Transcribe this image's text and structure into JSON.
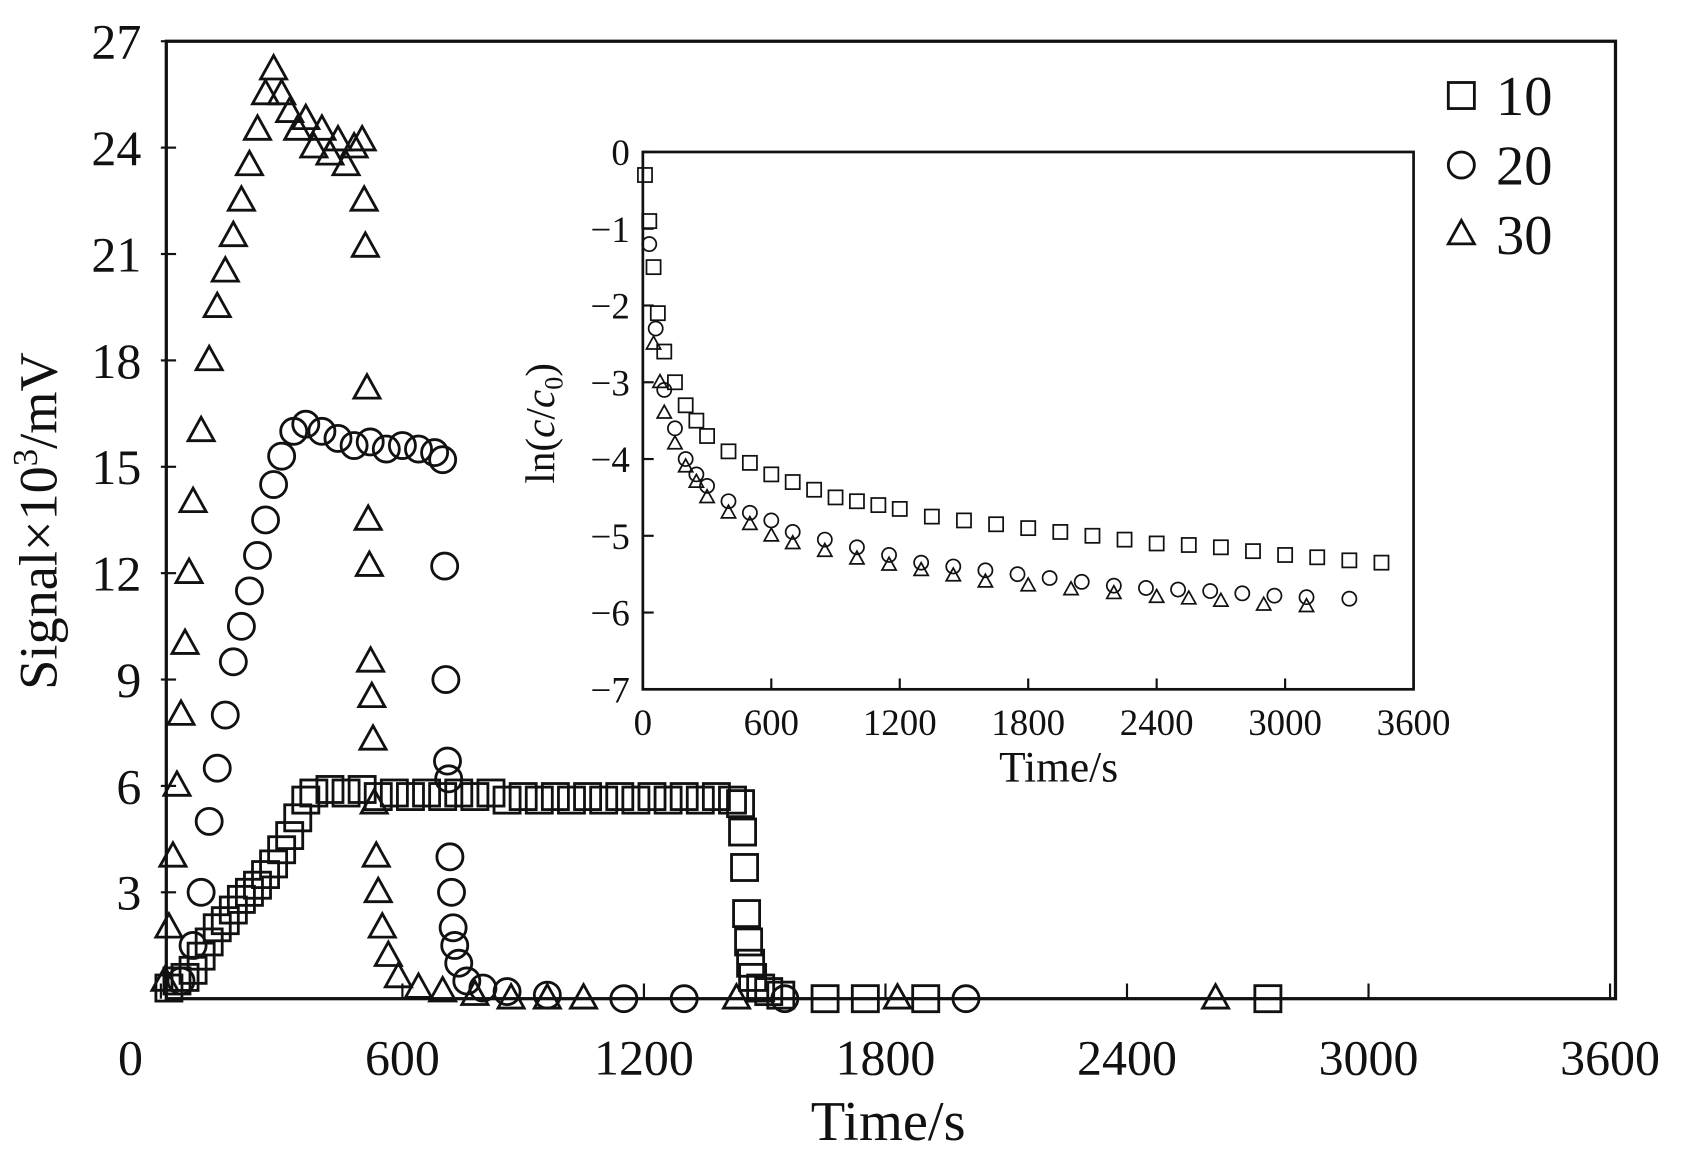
{
  "chart_data": [
    {
      "type": "scatter",
      "xlabel": "Time/s",
      "ylabel": "Signal×10³/mV",
      "xlim": [
        0,
        3600
      ],
      "ylim": [
        0,
        27
      ],
      "xticks": [
        "0",
        "600",
        "1200",
        "1800",
        "2400",
        "3000",
        "3600"
      ],
      "yticks": [
        "3",
        "6",
        "9",
        "12",
        "15",
        "18",
        "21",
        "24",
        "27"
      ],
      "grid": false,
      "legend_position": "top-right",
      "series": [
        {
          "name": "10",
          "marker": "square",
          "points": [
            [
              20,
              0.3
            ],
            [
              40,
              0.5
            ],
            [
              60,
              0.6
            ],
            [
              80,
              0.8
            ],
            [
              100,
              1.2
            ],
            [
              120,
              1.6
            ],
            [
              140,
              2
            ],
            [
              160,
              2.2
            ],
            [
              180,
              2.5
            ],
            [
              200,
              2.8
            ],
            [
              220,
              3
            ],
            [
              240,
              3.2
            ],
            [
              260,
              3.5
            ],
            [
              280,
              3.8
            ],
            [
              300,
              4.2
            ],
            [
              320,
              4.6
            ],
            [
              340,
              5.1
            ],
            [
              360,
              5.6
            ],
            [
              380,
              5.8
            ],
            [
              420,
              5.9
            ],
            [
              460,
              5.8
            ],
            [
              500,
              5.9
            ],
            [
              540,
              5.7
            ],
            [
              580,
              5.8
            ],
            [
              620,
              5.7
            ],
            [
              660,
              5.8
            ],
            [
              700,
              5.7
            ],
            [
              740,
              5.8
            ],
            [
              780,
              5.7
            ],
            [
              820,
              5.8
            ],
            [
              860,
              5.6
            ],
            [
              900,
              5.7
            ],
            [
              940,
              5.6
            ],
            [
              980,
              5.7
            ],
            [
              1020,
              5.6
            ],
            [
              1060,
              5.7
            ],
            [
              1100,
              5.6
            ],
            [
              1140,
              5.7
            ],
            [
              1180,
              5.6
            ],
            [
              1220,
              5.7
            ],
            [
              1260,
              5.6
            ],
            [
              1300,
              5.7
            ],
            [
              1340,
              5.6
            ],
            [
              1380,
              5.7
            ],
            [
              1420,
              5.6
            ],
            [
              1440,
              5.5
            ],
            [
              1445,
              4.7
            ],
            [
              1450,
              3.7
            ],
            [
              1455,
              2.4
            ],
            [
              1460,
              1.6
            ],
            [
              1465,
              1
            ],
            [
              1470,
              0.6
            ],
            [
              1490,
              0.3
            ],
            [
              1510,
              0.2
            ],
            [
              1540,
              0.1
            ],
            [
              1650,
              0
            ],
            [
              1750,
              0
            ],
            [
              1900,
              0
            ],
            [
              2750,
              0
            ]
          ]
        },
        {
          "name": "20",
          "marker": "circle",
          "points": [
            [
              50,
              0.5
            ],
            [
              80,
              1.5
            ],
            [
              100,
              3
            ],
            [
              120,
              5
            ],
            [
              140,
              6.5
            ],
            [
              160,
              8
            ],
            [
              180,
              9.5
            ],
            [
              200,
              10.5
            ],
            [
              220,
              11.5
            ],
            [
              240,
              12.5
            ],
            [
              260,
              13.5
            ],
            [
              280,
              14.5
            ],
            [
              300,
              15.3
            ],
            [
              330,
              16
            ],
            [
              360,
              16.2
            ],
            [
              400,
              16
            ],
            [
              440,
              15.8
            ],
            [
              480,
              15.6
            ],
            [
              520,
              15.7
            ],
            [
              560,
              15.5
            ],
            [
              600,
              15.6
            ],
            [
              640,
              15.5
            ],
            [
              680,
              15.4
            ],
            [
              700,
              15.2
            ],
            [
              705,
              12.2
            ],
            [
              708,
              9
            ],
            [
              712,
              6.7
            ],
            [
              715,
              6.2
            ],
            [
              718,
              4
            ],
            [
              722,
              3
            ],
            [
              726,
              2
            ],
            [
              730,
              1.5
            ],
            [
              740,
              1
            ],
            [
              760,
              0.5
            ],
            [
              800,
              0.3
            ],
            [
              860,
              0.2
            ],
            [
              960,
              0.1
            ],
            [
              1150,
              0
            ],
            [
              1300,
              0
            ],
            [
              1550,
              0
            ],
            [
              2000,
              0
            ]
          ]
        },
        {
          "name": "30",
          "marker": "triangle",
          "points": [
            [
              10,
              0.5
            ],
            [
              20,
              2
            ],
            [
              30,
              4
            ],
            [
              40,
              6
            ],
            [
              50,
              8
            ],
            [
              60,
              10
            ],
            [
              70,
              12
            ],
            [
              80,
              14
            ],
            [
              100,
              16
            ],
            [
              120,
              18
            ],
            [
              140,
              19.5
            ],
            [
              160,
              20.5
            ],
            [
              180,
              21.5
            ],
            [
              200,
              22.5
            ],
            [
              220,
              23.5
            ],
            [
              240,
              24.5
            ],
            [
              260,
              25.5
            ],
            [
              280,
              26.2
            ],
            [
              300,
              25.5
            ],
            [
              320,
              25
            ],
            [
              340,
              24.5
            ],
            [
              360,
              24.8
            ],
            [
              380,
              24
            ],
            [
              400,
              24.5
            ],
            [
              420,
              23.8
            ],
            [
              440,
              24.2
            ],
            [
              460,
              23.5
            ],
            [
              480,
              24
            ],
            [
              500,
              24.2
            ],
            [
              505,
              22.5
            ],
            [
              508,
              21.2
            ],
            [
              512,
              17.2
            ],
            [
              515,
              13.5
            ],
            [
              518,
              12.2
            ],
            [
              521,
              9.5
            ],
            [
              524,
              8.5
            ],
            [
              527,
              7.3
            ],
            [
              530,
              5.5
            ],
            [
              535,
              4
            ],
            [
              540,
              3
            ],
            [
              550,
              2
            ],
            [
              565,
              1.2
            ],
            [
              590,
              0.6
            ],
            [
              640,
              0.3
            ],
            [
              700,
              0.2
            ],
            [
              780,
              0.1
            ],
            [
              870,
              0
            ],
            [
              960,
              0
            ],
            [
              1050,
              0
            ],
            [
              1430,
              0
            ],
            [
              1830,
              0
            ],
            [
              2620,
              0
            ]
          ]
        }
      ]
    },
    {
      "type": "scatter",
      "xlabel": "Time/s",
      "ylabel": "ln(c/c0)",
      "xlim": [
        0,
        3600
      ],
      "ylim": [
        -7,
        0
      ],
      "xticks": [
        "0",
        "600",
        "1200",
        "1800",
        "2400",
        "3000",
        "3600"
      ],
      "yticks": [
        "0",
        "−1",
        "−2",
        "−3",
        "−4",
        "−5",
        "−6",
        "−7"
      ],
      "grid": false,
      "series": [
        {
          "name": "10",
          "marker": "square",
          "points": [
            [
              10,
              -0.3
            ],
            [
              30,
              -0.9
            ],
            [
              50,
              -1.5
            ],
            [
              70,
              -2.1
            ],
            [
              100,
              -2.6
            ],
            [
              150,
              -3
            ],
            [
              200,
              -3.3
            ],
            [
              250,
              -3.5
            ],
            [
              300,
              -3.7
            ],
            [
              400,
              -3.9
            ],
            [
              500,
              -4.05
            ],
            [
              600,
              -4.2
            ],
            [
              700,
              -4.3
            ],
            [
              800,
              -4.4
            ],
            [
              900,
              -4.5
            ],
            [
              1000,
              -4.55
            ],
            [
              1100,
              -4.6
            ],
            [
              1200,
              -4.65
            ],
            [
              1350,
              -4.75
            ],
            [
              1500,
              -4.8
            ],
            [
              1650,
              -4.85
            ],
            [
              1800,
              -4.9
            ],
            [
              1950,
              -4.95
            ],
            [
              2100,
              -5
            ],
            [
              2250,
              -5.05
            ],
            [
              2400,
              -5.1
            ],
            [
              2550,
              -5.12
            ],
            [
              2700,
              -5.15
            ],
            [
              2850,
              -5.2
            ],
            [
              3000,
              -5.25
            ],
            [
              3150,
              -5.28
            ],
            [
              3300,
              -5.32
            ],
            [
              3450,
              -5.35
            ]
          ]
        },
        {
          "name": "20",
          "marker": "circle",
          "points": [
            [
              30,
              -1.2
            ],
            [
              60,
              -2.3
            ],
            [
              100,
              -3.1
            ],
            [
              150,
              -3.6
            ],
            [
              200,
              -4
            ],
            [
              250,
              -4.2
            ],
            [
              300,
              -4.35
            ],
            [
              400,
              -4.55
            ],
            [
              500,
              -4.7
            ],
            [
              600,
              -4.8
            ],
            [
              700,
              -4.95
            ],
            [
              850,
              -5.05
            ],
            [
              1000,
              -5.15
            ],
            [
              1150,
              -5.25
            ],
            [
              1300,
              -5.35
            ],
            [
              1450,
              -5.4
            ],
            [
              1600,
              -5.45
            ],
            [
              1750,
              -5.5
            ],
            [
              1900,
              -5.55
            ],
            [
              2050,
              -5.6
            ],
            [
              2200,
              -5.65
            ],
            [
              2350,
              -5.68
            ],
            [
              2500,
              -5.7
            ],
            [
              2650,
              -5.72
            ],
            [
              2800,
              -5.75
            ],
            [
              2950,
              -5.78
            ],
            [
              3100,
              -5.8
            ],
            [
              3300,
              -5.82
            ]
          ]
        },
        {
          "name": "30",
          "marker": "triangle",
          "points": [
            [
              50,
              -2.5
            ],
            [
              80,
              -3
            ],
            [
              100,
              -3.4
            ],
            [
              150,
              -3.8
            ],
            [
              200,
              -4.1
            ],
            [
              250,
              -4.3
            ],
            [
              300,
              -4.5
            ],
            [
              400,
              -4.7
            ],
            [
              500,
              -4.85
            ],
            [
              600,
              -5
            ],
            [
              700,
              -5.1
            ],
            [
              850,
              -5.2
            ],
            [
              1000,
              -5.3
            ],
            [
              1150,
              -5.38
            ],
            [
              1300,
              -5.45
            ],
            [
              1450,
              -5.52
            ],
            [
              1600,
              -5.6
            ],
            [
              1800,
              -5.65
            ],
            [
              2000,
              -5.7
            ],
            [
              2200,
              -5.75
            ],
            [
              2400,
              -5.8
            ],
            [
              2550,
              -5.82
            ],
            [
              2700,
              -5.85
            ],
            [
              2900,
              -5.9
            ],
            [
              3100,
              -5.92
            ]
          ]
        }
      ]
    }
  ],
  "legend": [
    {
      "label": "10",
      "marker": "square"
    },
    {
      "label": "20",
      "marker": "circle"
    },
    {
      "label": "30",
      "marker": "triangle"
    }
  ],
  "colors": {
    "marker_stroke": "#111111",
    "background": "#ffffff"
  }
}
